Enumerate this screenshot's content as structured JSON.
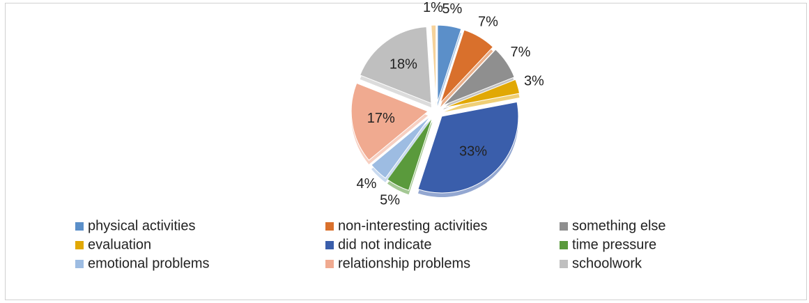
{
  "chart_data": {
    "type": "pie",
    "categories": [
      "physical activities",
      "non-interesting activities",
      "something else",
      "evaluation",
      "did not indicate",
      "time pressure",
      "emotional problems",
      "relationship problems",
      "schoolwork",
      null
    ],
    "values": [
      5,
      7,
      7,
      3,
      33,
      5,
      4,
      17,
      18,
      1
    ],
    "value_labels": [
      "5%",
      "7%",
      "7%",
      "3%",
      "33%",
      "5%",
      "4%",
      "17%",
      "18%",
      "1%"
    ],
    "colors": [
      "#5b8fc9",
      "#d9702c",
      "#8f8f8f",
      "#e1a805",
      "#3a5eab",
      "#5a9a3c",
      "#9dbce2",
      "#f0aa90",
      "#bfbfbf",
      "#f6d29a"
    ],
    "legend": "bottom"
  }
}
